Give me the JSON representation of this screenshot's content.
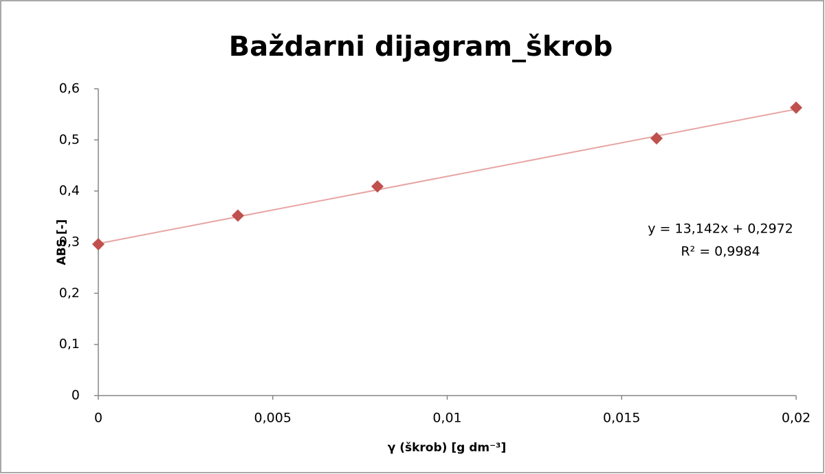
{
  "chart_data": {
    "type": "scatter",
    "title": "Baždarni dijagram_škrob",
    "xlabel": "γ (škrob) [g dm⁻³]",
    "ylabel": "ABS [-]",
    "x": [
      0,
      0.004,
      0.008,
      0.016,
      0.02
    ],
    "series": [
      {
        "name": "ABS",
        "color": "#c0504d",
        "values": [
          0.296,
          0.352,
          0.409,
          0.503,
          0.563
        ]
      }
    ],
    "trendline": {
      "slope": 13.142,
      "intercept": 0.2972,
      "color": "#e6a5a3",
      "label": "y = 13,142x + 0,2972"
    },
    "annotations": [
      "R² = 0,9984"
    ],
    "xlim": [
      0,
      0.02
    ],
    "xticks": [
      0,
      {
        "value": 0.005,
        "label": "0,005"
      },
      {
        "value": 0.01,
        "label": "0,01"
      },
      {
        "value": 0.015,
        "label": "0,015"
      },
      {
        "value": 0.02,
        "label": "0,02"
      }
    ],
    "ylim": [
      0,
      0.6
    ],
    "yticks": [
      0,
      {
        "value": 0.1,
        "label": "0,1"
      },
      {
        "value": 0.2,
        "label": "0,2"
      },
      {
        "value": 0.3,
        "label": "0,3"
      },
      {
        "value": 0.4,
        "label": "0,4"
      },
      {
        "value": 0.5,
        "label": "0,5"
      },
      {
        "value": 0.6,
        "label": "0,6"
      }
    ],
    "grid": false
  }
}
